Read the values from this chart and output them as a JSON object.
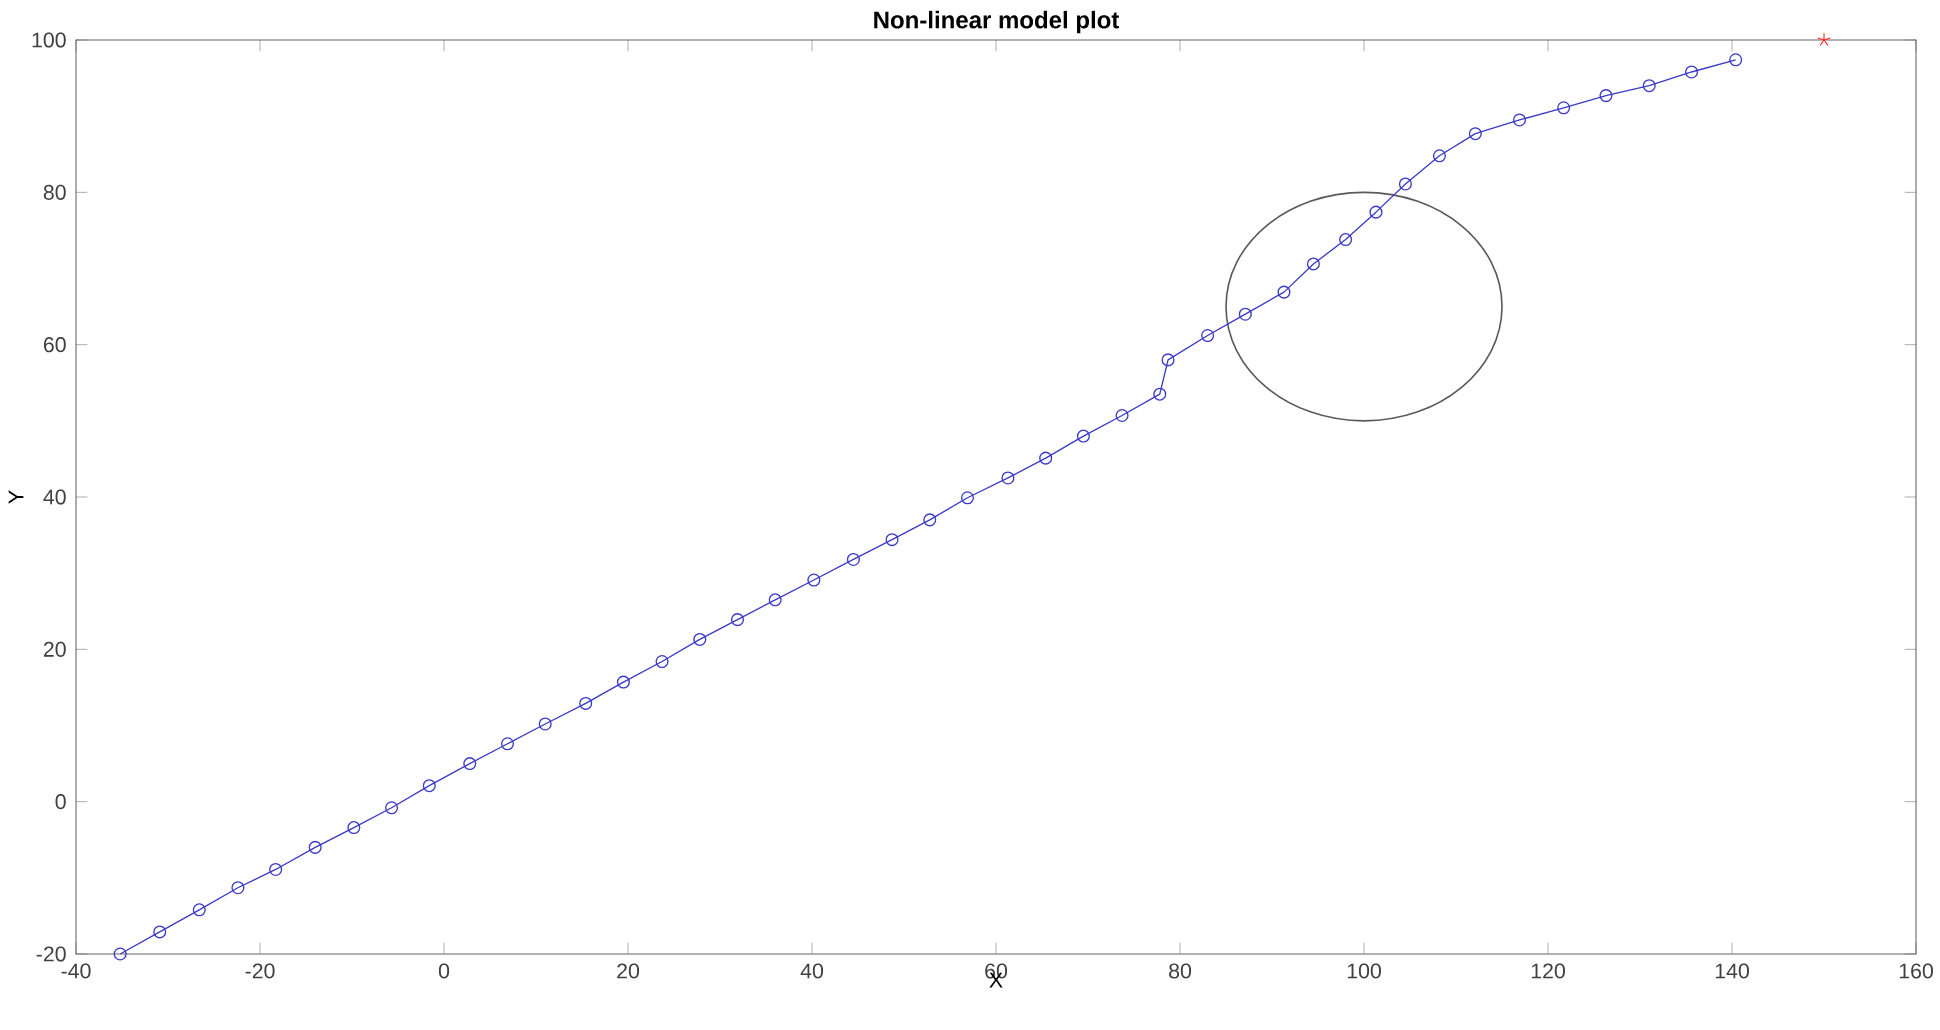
{
  "chart_data": {
    "type": "line",
    "title": "Non-linear model plot",
    "xlabel": "X",
    "ylabel": "Y",
    "xlim": [
      -40,
      160
    ],
    "ylim": [
      -20,
      100
    ],
    "xticks": [
      -40,
      -20,
      0,
      20,
      40,
      60,
      80,
      100,
      120,
      140,
      160
    ],
    "yticks": [
      -20,
      0,
      20,
      40,
      60,
      80,
      100
    ],
    "grid": false,
    "line_style": "solid",
    "series": [
      {
        "color": "#3a3ac8",
        "marker": "circle",
        "x": [
          -35.2,
          -30.9,
          -26.6,
          -22.4,
          -18.3,
          -14.0,
          -9.8,
          -5.7,
          -1.6,
          2.8,
          6.9,
          11.0,
          15.4,
          19.5,
          23.7,
          27.8,
          31.9,
          36.0,
          40.2,
          44.5,
          48.7,
          52.8,
          56.9,
          61.3,
          65.4,
          69.5,
          73.7,
          77.8,
          78.7,
          83.0,
          87.1,
          91.3,
          94.5,
          98.0,
          101.3,
          104.5,
          108.2,
          112.1,
          116.9,
          121.7,
          126.3,
          131.0,
          135.6,
          140.4
        ],
        "values": [
          -20,
          -17.1,
          -14.2,
          -11.3,
          -8.9,
          -6.0,
          -3.4,
          -0.8,
          2.1,
          5.0,
          7.6,
          10.2,
          12.9,
          15.7,
          18.4,
          21.3,
          23.9,
          26.5,
          29.1,
          31.8,
          34.4,
          37.0,
          39.9,
          42.5,
          45.1,
          48.0,
          50.7,
          53.5,
          58.0,
          61.2,
          64.0,
          66.9,
          70.6,
          73.8,
          77.4,
          81.1,
          84.8,
          87.7,
          89.5,
          91.1,
          92.7,
          94.0,
          95.8,
          97.4
        ]
      },
      {
        "type": "scatter",
        "color": "#ff2020",
        "marker": "cross",
        "x": [
          150
        ],
        "values": [
          100
        ]
      }
    ]
  }
}
